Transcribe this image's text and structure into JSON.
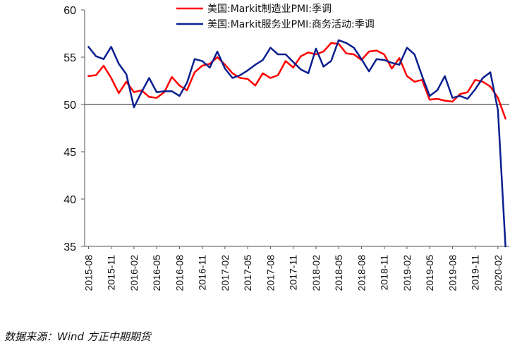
{
  "chart_data": {
    "type": "line",
    "title": "",
    "xlabel": "",
    "ylabel": "",
    "ylim": [
      35,
      60
    ],
    "yticks": [
      35,
      40,
      45,
      50,
      55,
      60
    ],
    "reference_line": 50,
    "x": [
      "2015-08",
      "2015-09",
      "2015-10",
      "2015-11",
      "2015-12",
      "2016-01",
      "2016-02",
      "2016-03",
      "2016-04",
      "2016-05",
      "2016-06",
      "2016-07",
      "2016-08",
      "2016-09",
      "2016-10",
      "2016-11",
      "2016-12",
      "2017-01",
      "2017-02",
      "2017-03",
      "2017-04",
      "2017-05",
      "2017-06",
      "2017-07",
      "2017-08",
      "2017-09",
      "2017-10",
      "2017-11",
      "2017-12",
      "2018-01",
      "2018-02",
      "2018-03",
      "2018-04",
      "2018-05",
      "2018-06",
      "2018-07",
      "2018-08",
      "2018-09",
      "2018-10",
      "2018-11",
      "2018-12",
      "2019-01",
      "2019-02",
      "2019-03",
      "2019-04",
      "2019-05",
      "2019-06",
      "2019-07",
      "2019-08",
      "2019-09",
      "2019-10",
      "2019-11",
      "2019-12",
      "2020-01",
      "2020-02",
      "2020-03"
    ],
    "tick_labels": [
      "2015-08",
      "2015-11",
      "2016-02",
      "2016-05",
      "2016-08",
      "2016-11",
      "2017-02",
      "2017-05",
      "2017-08",
      "2017-11",
      "2018-02",
      "2018-05",
      "2018-08",
      "2018-11",
      "2019-02",
      "2019-05",
      "2019-08",
      "2019-11",
      "2020-02"
    ],
    "series": [
      {
        "name": "美国:Markit制造业PMI:季调",
        "color": "#ff0000",
        "values": [
          53.0,
          53.1,
          54.1,
          52.8,
          51.2,
          52.4,
          51.3,
          51.5,
          50.8,
          50.7,
          51.3,
          52.9,
          52.0,
          51.5,
          53.4,
          54.1,
          54.3,
          55.0,
          54.2,
          53.3,
          52.8,
          52.7,
          52.0,
          53.3,
          52.8,
          53.1,
          54.6,
          53.9,
          55.1,
          55.5,
          55.3,
          55.6,
          56.5,
          56.4,
          55.4,
          55.3,
          54.7,
          55.6,
          55.7,
          55.3,
          53.8,
          54.9,
          53.0,
          52.4,
          52.6,
          50.5,
          50.6,
          50.4,
          50.3,
          51.1,
          51.3,
          52.6,
          52.4,
          51.9,
          50.7,
          48.5
        ]
      },
      {
        "name": "美国:Markit服务业PMI:商务活动:季调",
        "color": "#0a1f8f",
        "values": [
          56.1,
          55.1,
          54.8,
          56.1,
          54.3,
          53.2,
          49.7,
          51.3,
          52.8,
          51.3,
          51.4,
          51.4,
          50.9,
          52.3,
          54.8,
          54.6,
          53.9,
          55.6,
          53.8,
          52.8,
          53.1,
          53.6,
          54.2,
          54.7,
          56.0,
          55.3,
          55.3,
          54.5,
          53.7,
          53.3,
          55.9,
          54.0,
          54.6,
          56.8,
          56.5,
          56.0,
          54.8,
          53.5,
          54.8,
          54.7,
          54.4,
          54.2,
          56.0,
          55.3,
          53.0,
          50.9,
          51.5,
          53.0,
          50.7,
          50.9,
          50.6,
          51.6,
          52.8,
          53.4,
          49.4,
          35.0
        ]
      }
    ]
  },
  "source": "数据来源：Wind  方正中期期货"
}
